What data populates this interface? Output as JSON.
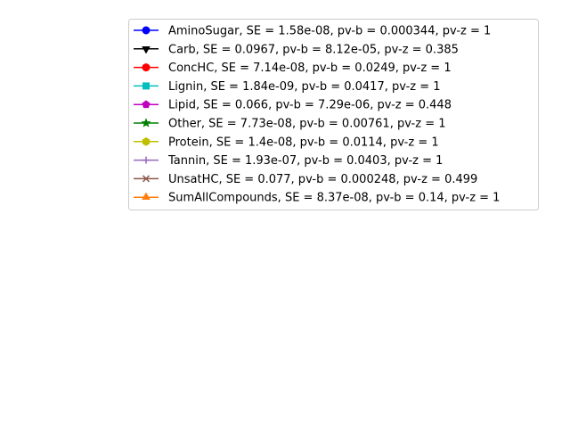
{
  "chart_data": {
    "type": "line",
    "title": "",
    "xlabel": "",
    "ylabel": "",
    "grid": false,
    "legend_placement": "top-right",
    "series": [
      {
        "name": "AminoSugar,  SE = 1.58e-08,  pv-b = 0.000344,  pv-z = 1",
        "color": "#0000ff",
        "marker": "circle",
        "values": []
      },
      {
        "name": "Carb,  SE = 0.0967,  pv-b = 8.12e-05,  pv-z = 0.385",
        "color": "#000000",
        "marker": "triangle-down",
        "values": []
      },
      {
        "name": "ConcHC,  SE = 7.14e-08,  pv-b = 0.0249,  pv-z = 1",
        "color": "#ff0000",
        "marker": "circle",
        "values": []
      },
      {
        "name": "Lignin,  SE = 1.84e-09,  pv-b = 0.0417,  pv-z = 1",
        "color": "#00bfbf",
        "marker": "square",
        "values": []
      },
      {
        "name": "Lipid,  SE = 0.066,  pv-b = 7.29e-06,  pv-z = 0.448",
        "color": "#bf00bf",
        "marker": "pentagon",
        "values": []
      },
      {
        "name": "Other,  SE = 7.73e-08,  pv-b = 0.00761,  pv-z = 1",
        "color": "#008000",
        "marker": "star",
        "values": []
      },
      {
        "name": "Protein,  SE = 1.4e-08,  pv-b = 0.0114,  pv-z = 1",
        "color": "#bfbf00",
        "marker": "hexagon",
        "values": []
      },
      {
        "name": "Tannin,  SE = 1.93e-07,  pv-b = 0.0403,  pv-z = 1",
        "color": "#9467bd",
        "marker": "plus",
        "values": []
      },
      {
        "name": "UnsatHC,  SE = 0.077,  pv-b = 0.000248,  pv-z = 0.499",
        "color": "#8c564b",
        "marker": "x",
        "values": []
      },
      {
        "name": "SumAllCompounds,  SE = 8.37e-08,  pv-b = 0.14,  pv-z = 1",
        "color": "#ff7f0e",
        "marker": "triangle-up",
        "values": []
      }
    ]
  }
}
